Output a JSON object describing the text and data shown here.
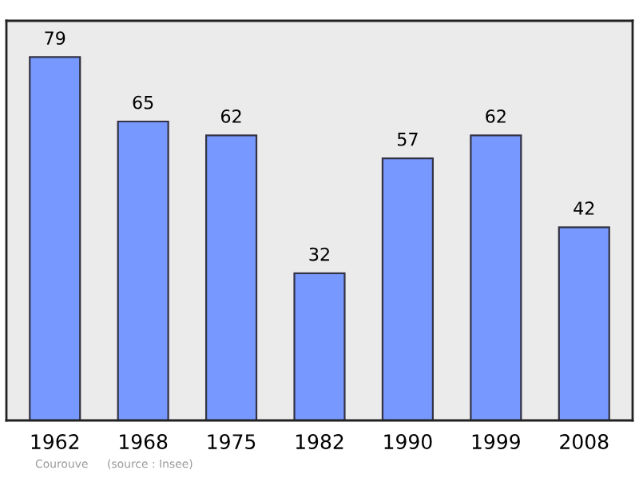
{
  "chart_data": {
    "type": "bar",
    "categories": [
      "1962",
      "1968",
      "1975",
      "1982",
      "1990",
      "1999",
      "2008"
    ],
    "values": [
      79,
      65,
      62,
      32,
      57,
      62,
      42
    ],
    "color": "#7799ff",
    "data_labels": true,
    "grid": false,
    "legend": false,
    "tick_labels": "x",
    "annotations": [
      "Courouve",
      "(source : Insee)"
    ]
  }
}
